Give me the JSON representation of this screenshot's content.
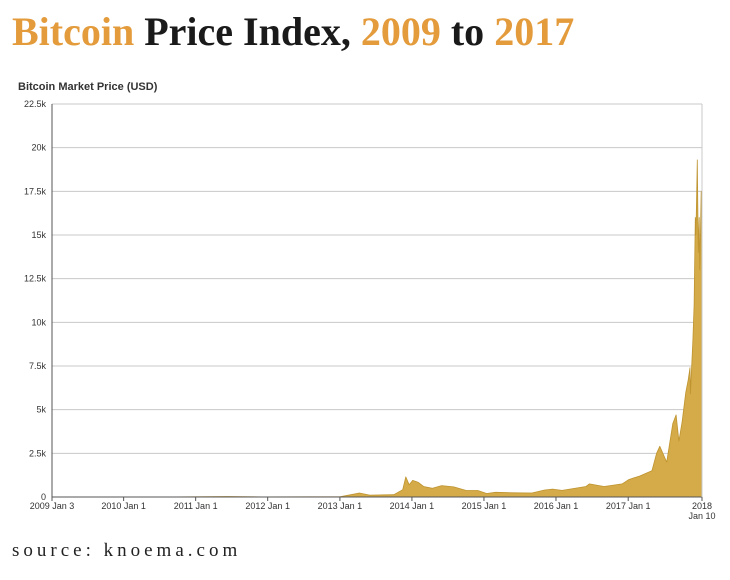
{
  "title": {
    "part1": "Bitcoin",
    "part2": " Price Index, ",
    "part3": "2009",
    "part4": " to ",
    "part5": "2017"
  },
  "colors": {
    "accent": "#e39b3c",
    "area_fill": "#d4ab48",
    "area_stroke": "#bf9430",
    "title_dark": "#1a1a1a"
  },
  "source": "source: knoema.com",
  "chart_data": {
    "type": "area",
    "title": "Bitcoin Market Price (USD)",
    "xlabel": "",
    "ylabel": "",
    "ylim": [
      0,
      22500
    ],
    "xlim": [
      "2009-01-03",
      "2018-01-10"
    ],
    "grid": true,
    "legend": "none",
    "y_ticks": [
      {
        "value": 0,
        "label": "0"
      },
      {
        "value": 2500,
        "label": "2.5k"
      },
      {
        "value": 5000,
        "label": "5k"
      },
      {
        "value": 7500,
        "label": "7.5k"
      },
      {
        "value": 10000,
        "label": "10k"
      },
      {
        "value": 12500,
        "label": "12.5k"
      },
      {
        "value": 15000,
        "label": "15k"
      },
      {
        "value": 17500,
        "label": "17.5k"
      },
      {
        "value": 20000,
        "label": "20k"
      },
      {
        "value": 22500,
        "label": "22.5k"
      }
    ],
    "x_ticks": [
      {
        "date": "2009-01-03",
        "label": "2009 Jan 3"
      },
      {
        "date": "2010-01-01",
        "label": "2010 Jan 1"
      },
      {
        "date": "2011-01-01",
        "label": "2011 Jan 1"
      },
      {
        "date": "2012-01-01",
        "label": "2012 Jan 1"
      },
      {
        "date": "2013-01-01",
        "label": "2013 Jan 1"
      },
      {
        "date": "2014-01-01",
        "label": "2014 Jan 1"
      },
      {
        "date": "2015-01-01",
        "label": "2015 Jan 1"
      },
      {
        "date": "2016-01-01",
        "label": "2016 Jan 1"
      },
      {
        "date": "2017-01-01",
        "label": "2017 Jan 1"
      },
      {
        "date": "2018-01-10",
        "label": "2018",
        "label2": "Jan 10"
      }
    ],
    "series": [
      {
        "values": [
          [
            "2009-01-03",
            0
          ],
          [
            "2010-07-01",
            0
          ],
          [
            "2011-06-10",
            30
          ],
          [
            "2011-12-01",
            3
          ],
          [
            "2012-08-01",
            12
          ],
          [
            "2013-01-01",
            13
          ],
          [
            "2013-04-10",
            230
          ],
          [
            "2013-06-01",
            110
          ],
          [
            "2013-10-01",
            130
          ],
          [
            "2013-11-15",
            420
          ],
          [
            "2013-12-01",
            1150
          ],
          [
            "2013-12-18",
            700
          ],
          [
            "2014-01-05",
            950
          ],
          [
            "2014-02-01",
            850
          ],
          [
            "2014-03-01",
            600
          ],
          [
            "2014-04-15",
            500
          ],
          [
            "2014-06-01",
            650
          ],
          [
            "2014-08-01",
            580
          ],
          [
            "2014-10-01",
            380
          ],
          [
            "2014-12-01",
            370
          ],
          [
            "2015-01-15",
            200
          ],
          [
            "2015-03-01",
            270
          ],
          [
            "2015-06-01",
            240
          ],
          [
            "2015-09-01",
            230
          ],
          [
            "2015-11-05",
            400
          ],
          [
            "2015-12-15",
            450
          ],
          [
            "2016-02-01",
            380
          ],
          [
            "2016-06-01",
            600
          ],
          [
            "2016-06-18",
            750
          ],
          [
            "2016-09-01",
            600
          ],
          [
            "2016-12-01",
            750
          ],
          [
            "2017-01-05",
            1000
          ],
          [
            "2017-03-01",
            1200
          ],
          [
            "2017-05-01",
            1500
          ],
          [
            "2017-05-25",
            2500
          ],
          [
            "2017-06-10",
            2900
          ],
          [
            "2017-07-15",
            2000
          ],
          [
            "2017-08-15",
            4200
          ],
          [
            "2017-09-01",
            4700
          ],
          [
            "2017-09-15",
            3200
          ],
          [
            "2017-10-01",
            4300
          ],
          [
            "2017-10-20",
            6000
          ],
          [
            "2017-11-01",
            6700
          ],
          [
            "2017-11-10",
            7400
          ],
          [
            "2017-11-12",
            5900
          ],
          [
            "2017-11-25",
            9000
          ],
          [
            "2017-12-01",
            11000
          ],
          [
            "2017-12-07",
            16000
          ],
          [
            "2017-12-10",
            15000
          ],
          [
            "2017-12-17",
            19300
          ],
          [
            "2017-12-22",
            14000
          ],
          [
            "2017-12-27",
            16000
          ],
          [
            "2017-12-30",
            13000
          ],
          [
            "2018-01-06",
            17500
          ],
          [
            "2018-01-10",
            14500
          ]
        ]
      }
    ]
  }
}
